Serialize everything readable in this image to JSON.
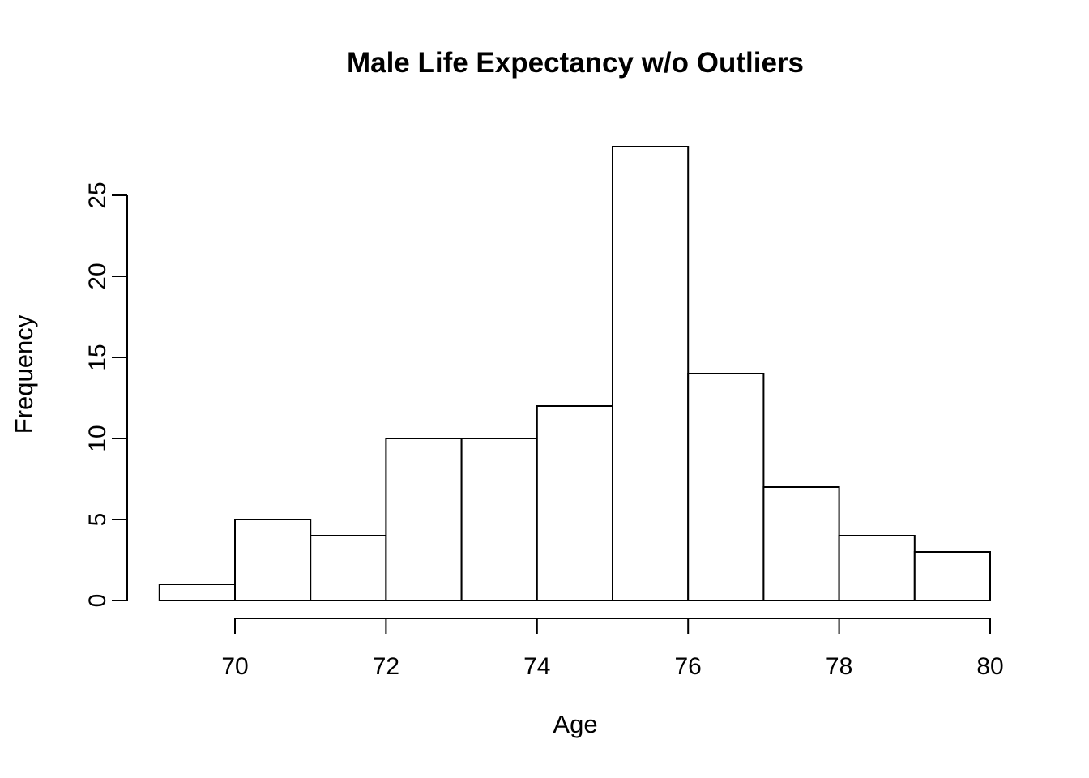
{
  "chart_data": {
    "type": "bar",
    "subtype": "histogram",
    "title": "Male Life Expectancy w/o Outliers",
    "xlabel": "Age",
    "ylabel": "Frequency",
    "breaks": [
      69,
      70,
      71,
      72,
      73,
      74,
      75,
      76,
      77,
      78,
      79,
      80
    ],
    "counts": [
      1,
      5,
      4,
      10,
      10,
      12,
      28,
      14,
      7,
      4,
      3
    ],
    "x_ticks": [
      70,
      72,
      74,
      76,
      78,
      80
    ],
    "y_ticks": [
      0,
      5,
      10,
      15,
      20,
      25
    ],
    "xlim": [
      69,
      80
    ],
    "ylim": [
      0,
      28
    ],
    "grid": false,
    "legend": null,
    "colors": {
      "background": "#ffffff",
      "bar_fill": "#ffffff",
      "bar_stroke": "#000000",
      "axis": "#000000",
      "text": "#000000"
    }
  }
}
